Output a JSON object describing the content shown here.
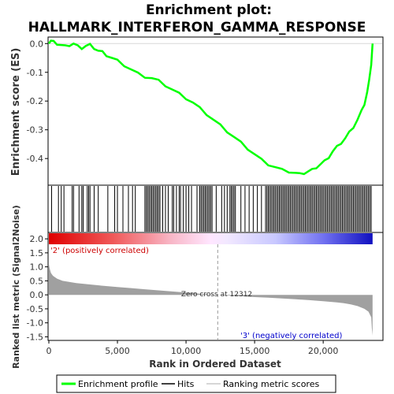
{
  "chart_data": {
    "type": "line",
    "title": "Enrichment plot:\nHALLMARK_INTERFERON_GAMMA_RESPONSE",
    "title_lines": [
      "Enrichment plot:",
      "HALLMARK_INTERFERON_GAMMA_RESPONSE"
    ],
    "es_panel": {
      "ylabel": "Enrichment score (ES)",
      "ylim": [
        -0.49,
        0.02
      ],
      "yticks": [
        "0.0",
        "-0.1",
        "-0.2",
        "-0.3",
        "-0.4"
      ],
      "ytick_values": [
        0.0,
        -0.1,
        -0.2,
        -0.3,
        -0.4
      ],
      "color": "#00ff00",
      "series": [
        {
          "name": "Enrichment profile",
          "x": [
            0,
            150,
            350,
            600,
            900,
            1200,
            1500,
            1800,
            2100,
            2400,
            2700,
            3000,
            3300,
            3600,
            3900,
            4200,
            4600,
            5000,
            5500,
            6000,
            6500,
            7000,
            7500,
            8000,
            8500,
            9000,
            9500,
            10000,
            10500,
            11000,
            11500,
            12000,
            12500,
            13000,
            13500,
            14000,
            14500,
            15000,
            15500,
            16000,
            16500,
            17000,
            17500,
            18000,
            18300,
            18600,
            18900,
            19200,
            19500,
            19800,
            20100,
            20400,
            20700,
            21000,
            21300,
            21600,
            21900,
            22200,
            22500,
            22800,
            23000,
            23200,
            23350,
            23500,
            23600
          ],
          "y": [
            0.0,
            0.01,
            0.005,
            0.0,
            -0.005,
            -0.01,
            -0.005,
            0.0,
            -0.01,
            -0.015,
            -0.008,
            -0.005,
            -0.015,
            -0.025,
            -0.03,
            -0.04,
            -0.05,
            -0.06,
            -0.075,
            -0.09,
            -0.105,
            -0.115,
            -0.12,
            -0.13,
            -0.145,
            -0.16,
            -0.175,
            -0.19,
            -0.205,
            -0.225,
            -0.245,
            -0.265,
            -0.285,
            -0.305,
            -0.325,
            -0.345,
            -0.365,
            -0.385,
            -0.405,
            -0.42,
            -0.43,
            -0.44,
            -0.445,
            -0.45,
            -0.455,
            -0.45,
            -0.445,
            -0.44,
            -0.43,
            -0.42,
            -0.41,
            -0.395,
            -0.375,
            -0.36,
            -0.345,
            -0.33,
            -0.31,
            -0.29,
            -0.265,
            -0.235,
            -0.21,
            -0.17,
            -0.13,
            -0.07,
            0.0
          ]
        }
      ]
    },
    "hits_panel": {
      "legend_label": "Hits",
      "hit_ranks": [
        200,
        700,
        900,
        1100,
        1700,
        1800,
        2200,
        2400,
        2500,
        2800,
        2900,
        3000,
        3300,
        3600,
        4300,
        4800,
        5000,
        5400,
        5800,
        6100,
        6300,
        7000,
        7100,
        7200,
        7300,
        7400,
        7500,
        7600,
        7700,
        7800,
        7900,
        8000,
        8100,
        8300,
        8500,
        8700,
        9000,
        9100,
        9300,
        9500,
        9600,
        9800,
        10000,
        10200,
        10400,
        10800,
        11000,
        11100,
        11200,
        11300,
        11400,
        11500,
        11600,
        11700,
        11800,
        11900,
        12200,
        12600,
        12800,
        13000,
        13200,
        13300,
        13400,
        13500,
        13600,
        14000,
        14300,
        14600,
        14900,
        15200,
        15500,
        15800,
        15900,
        16000,
        16100,
        16200,
        16300,
        16400,
        16500,
        16600,
        16700,
        16800,
        16900,
        17000,
        17100,
        17200,
        17300,
        17400,
        17500,
        17600,
        17700,
        17800,
        17900,
        18000,
        18100,
        18200,
        18300,
        18400,
        18500,
        18600,
        18700,
        18800,
        18900,
        19000,
        19100,
        19200,
        19300,
        19400,
        19500,
        19600,
        19700,
        19800,
        19900,
        20000,
        20100,
        20200,
        20300,
        20400,
        20500,
        20600,
        20700,
        20800,
        20900,
        21000,
        21100,
        21200,
        21300,
        21400,
        21500,
        21600,
        21700,
        21800,
        21900,
        22000,
        22100,
        22200,
        22300,
        22400,
        22500,
        22600,
        22700,
        22800,
        22900,
        23000,
        23100,
        23200,
        23300,
        23400,
        23500
      ]
    },
    "metric_panel": {
      "ylabel": "Ranked list metric (Signal2Noise)",
      "ylim": [
        -1.6,
        2.2
      ],
      "yticks": [
        "2.0",
        "1.5",
        "1.0",
        "0.5",
        "0.0",
        "-0.5",
        "-1.0",
        "-1.5"
      ],
      "ytick_values": [
        2.0,
        1.5,
        1.0,
        0.5,
        0.0,
        -0.5,
        -1.0,
        -1.5
      ],
      "zero_cross_label": "Zero cross at 12312",
      "zero_cross": 12312,
      "positive_label": "'2' (positively correlated)",
      "negative_label": "'3' (negatively correlated)",
      "positive_color": "#ff0000",
      "negative_color": "#0000ff",
      "metric_color": "#a0a0a0",
      "profile": {
        "x": [
          0,
          50,
          150,
          300,
          600,
          1000,
          2000,
          3000,
          4000,
          5000,
          6000,
          7000,
          8000,
          9000,
          10000,
          11000,
          12312,
          13000,
          14000,
          15000,
          16000,
          17000,
          18000,
          19000,
          20000,
          21000,
          21500,
          22000,
          22500,
          23000,
          23300,
          23500,
          23550,
          23600
        ],
        "y": [
          1.1,
          0.95,
          0.78,
          0.68,
          0.58,
          0.5,
          0.42,
          0.37,
          0.32,
          0.28,
          0.24,
          0.2,
          0.16,
          0.12,
          0.08,
          0.04,
          0.0,
          -0.02,
          -0.05,
          -0.08,
          -0.1,
          -0.13,
          -0.16,
          -0.19,
          -0.23,
          -0.27,
          -0.3,
          -0.34,
          -0.4,
          -0.5,
          -0.6,
          -0.8,
          -1.2,
          -1.45
        ]
      }
    },
    "xaxis": {
      "xlabel": "Rank in Ordered Dataset",
      "xlim": [
        0,
        24300
      ],
      "xticks": [
        "0",
        "5,000",
        "10,000",
        "15,000",
        "20,000"
      ],
      "xtick_values": [
        0,
        5000,
        10000,
        15000,
        20000
      ]
    },
    "legend": {
      "placement": "bottom",
      "items": [
        {
          "label": "Enrichment profile",
          "color": "#00ff00"
        },
        {
          "label": "Hits",
          "color": "#000000"
        },
        {
          "label": "Ranking metric scores",
          "color": "#c8c8c8"
        }
      ]
    }
  }
}
